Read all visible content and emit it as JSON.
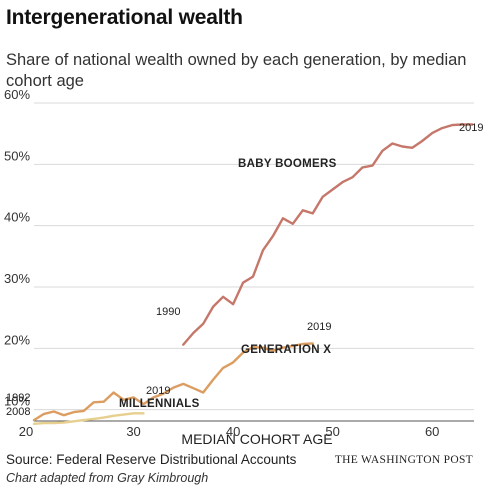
{
  "chart_data": {
    "type": "line",
    "title": "Intergenerational wealth",
    "subtitle": "Share of national wealth owned by each generation, by median cohort age",
    "xlabel": "MEDIAN COHORT AGE",
    "ylabel": "",
    "xlim": [
      20,
      65
    ],
    "ylim": [
      8,
      60
    ],
    "x_ticks": [
      20,
      30,
      40,
      50,
      60
    ],
    "y_ticks": [
      10,
      20,
      30,
      40,
      50,
      60
    ],
    "y_tick_labels": [
      "10%",
      "20%",
      "30%",
      "40%",
      "50%",
      "60%"
    ],
    "grid": "horizontal",
    "series": [
      {
        "name": "BABY BOOMERS",
        "color": "#c5776a",
        "start_label": "1990",
        "end_label": "2019",
        "x": [
          35,
          36,
          37,
          38,
          39,
          40,
          41,
          42,
          43,
          44,
          45,
          46,
          47,
          48,
          49,
          50,
          51,
          52,
          53,
          54,
          55,
          56,
          57,
          58,
          59,
          60,
          61,
          62,
          63,
          64
        ],
        "y": [
          20.6,
          22.5,
          24.0,
          26.8,
          28.4,
          27.2,
          30.7,
          31.7,
          36.0,
          38.3,
          41.2,
          40.3,
          42.5,
          42.0,
          44.7,
          45.9,
          47.1,
          47.9,
          49.5,
          49.8,
          52.2,
          53.4,
          52.9,
          52.7,
          53.8,
          55.1,
          55.9,
          56.4,
          56.5,
          56.5
        ]
      },
      {
        "name": "GENERATION X",
        "color": "#dc9d60",
        "start_label": "",
        "end_label": "2019",
        "x": [
          20,
          21,
          22,
          23,
          24,
          25,
          26,
          27,
          28,
          29,
          30,
          31,
          32,
          33,
          34,
          35,
          36,
          37,
          38,
          39,
          40,
          41,
          42,
          43,
          44,
          45,
          46,
          47,
          48
        ],
        "y": [
          8.3,
          9.3,
          9.7,
          9.1,
          9.6,
          9.8,
          11.2,
          11.3,
          12.8,
          11.6,
          12.0,
          10.9,
          12.0,
          12.6,
          13.6,
          14.2,
          13.5,
          12.8,
          14.9,
          16.8,
          17.7,
          19.3,
          20.2,
          20.1,
          19.6,
          20.1,
          20.4,
          20.7,
          20.8
        ]
      },
      {
        "name": "MILLENNIALS",
        "color": "#e6cf8f",
        "start_label": "2008",
        "end_label": "2019",
        "x": [
          20,
          21,
          22,
          23,
          24,
          25,
          26,
          27,
          28,
          29,
          30,
          31
        ],
        "y": [
          7.7,
          7.8,
          7.8,
          7.9,
          8.1,
          8.3,
          8.5,
          8.7,
          9.0,
          9.2,
          9.4,
          9.4
        ]
      }
    ],
    "extra_labels": [
      "1992"
    ]
  },
  "footer": {
    "source": "Source: Federal Reserve Distributional Accounts",
    "credit": "Chart adapted from Gray Kimbrough",
    "brand": "THE WASHINGTON POST"
  }
}
